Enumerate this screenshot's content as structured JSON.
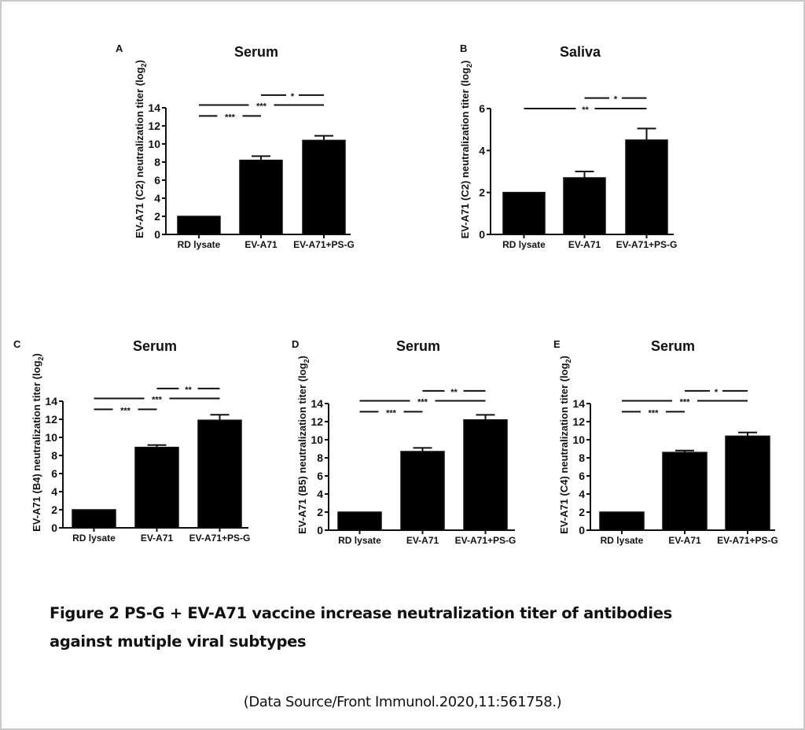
{
  "figure": {
    "caption_line1": "Figure 2  PS-G + EV-A71 vaccine increase neutralization titer of antibodies",
    "caption_line2": "against mutiple viral subtypes",
    "source": "(Data Source/Front Immunol.2020,11:561758.)"
  },
  "chart_data": [
    {
      "type": "bar",
      "panel": "A",
      "title": "Serum",
      "ylabel": "EV-A71 (C2) neutralization titer (log",
      "ylabel_sub": "2",
      "ylabel_end": ")",
      "categories": [
        "RD lysate",
        "EV-A71",
        "EV-A71+PS-G"
      ],
      "values": [
        2.0,
        8.2,
        10.4
      ],
      "errors": [
        0.0,
        0.45,
        0.5
      ],
      "ylim": [
        0,
        14
      ],
      "yticks": [
        0,
        2,
        4,
        6,
        8,
        10,
        12,
        14
      ],
      "significance": [
        {
          "from": 0,
          "to": 1,
          "label": "***",
          "level": 13.1
        },
        {
          "from": 0,
          "to": 2,
          "label": "***",
          "level": 14.3
        },
        {
          "from": 1,
          "to": 2,
          "label": "*",
          "level": 15.4
        }
      ],
      "color": "#000000"
    },
    {
      "type": "bar",
      "panel": "B",
      "title": "Saliva",
      "ylabel": "EV-A71 (C2) neutralization titer (log",
      "ylabel_sub": "2",
      "ylabel_end": ")",
      "categories": [
        "RD lysate",
        "EV-A71",
        "EV-A71+PS-G"
      ],
      "values": [
        2.0,
        2.7,
        4.5
      ],
      "errors": [
        0.0,
        0.3,
        0.55
      ],
      "ylim": [
        0,
        6
      ],
      "yticks": [
        0,
        2,
        4,
        6
      ],
      "significance": [
        {
          "from": 0,
          "to": 2,
          "label": "**",
          "level": 6.0
        },
        {
          "from": 1,
          "to": 2,
          "label": "*",
          "level": 6.5
        }
      ],
      "color": "#000000"
    },
    {
      "type": "bar",
      "panel": "C",
      "title": "Serum",
      "ylabel": "EV-A71 (B4) neutralization titer (log",
      "ylabel_sub": "2",
      "ylabel_end": ")",
      "categories": [
        "RD lysate",
        "EV-A71",
        "EV-A71+PS-G"
      ],
      "values": [
        2.0,
        8.9,
        11.9
      ],
      "errors": [
        0.0,
        0.25,
        0.6
      ],
      "ylim": [
        0,
        14
      ],
      "yticks": [
        0,
        2,
        4,
        6,
        8,
        10,
        12,
        14
      ],
      "significance": [
        {
          "from": 0,
          "to": 1,
          "label": "***",
          "level": 13.1
        },
        {
          "from": 0,
          "to": 2,
          "label": "***",
          "level": 14.3
        },
        {
          "from": 1,
          "to": 2,
          "label": "**",
          "level": 15.4
        }
      ],
      "color": "#000000"
    },
    {
      "type": "bar",
      "panel": "D",
      "title": "Serum",
      "ylabel": "EV-A71 (B5) neutralization titer (log",
      "ylabel_sub": "2",
      "ylabel_end": ")",
      "categories": [
        "RD lysate",
        "EV-A71",
        "EV-A71+PS-G"
      ],
      "values": [
        2.0,
        8.7,
        12.2
      ],
      "errors": [
        0.0,
        0.4,
        0.55
      ],
      "ylim": [
        0,
        14
      ],
      "yticks": [
        0,
        2,
        4,
        6,
        8,
        10,
        12,
        14
      ],
      "significance": [
        {
          "from": 0,
          "to": 1,
          "label": "***",
          "level": 13.1
        },
        {
          "from": 0,
          "to": 2,
          "label": "***",
          "level": 14.3
        },
        {
          "from": 1,
          "to": 2,
          "label": "**",
          "level": 15.4
        }
      ],
      "color": "#000000"
    },
    {
      "type": "bar",
      "panel": "E",
      "title": "Serum",
      "ylabel": "EV-A71 (C4) neutralization titer (log",
      "ylabel_sub": "2",
      "ylabel_end": ")",
      "categories": [
        "RD lysate",
        "EV-A71",
        "EV-A71+PS-G"
      ],
      "values": [
        2.0,
        8.6,
        10.4
      ],
      "errors": [
        0.0,
        0.2,
        0.4
      ],
      "ylim": [
        0,
        14
      ],
      "yticks": [
        0,
        2,
        4,
        6,
        8,
        10,
        12,
        14
      ],
      "significance": [
        {
          "from": 0,
          "to": 1,
          "label": "***",
          "level": 13.1
        },
        {
          "from": 0,
          "to": 2,
          "label": "***",
          "level": 14.3
        },
        {
          "from": 1,
          "to": 2,
          "label": "*",
          "level": 15.4
        }
      ],
      "color": "#000000"
    }
  ]
}
